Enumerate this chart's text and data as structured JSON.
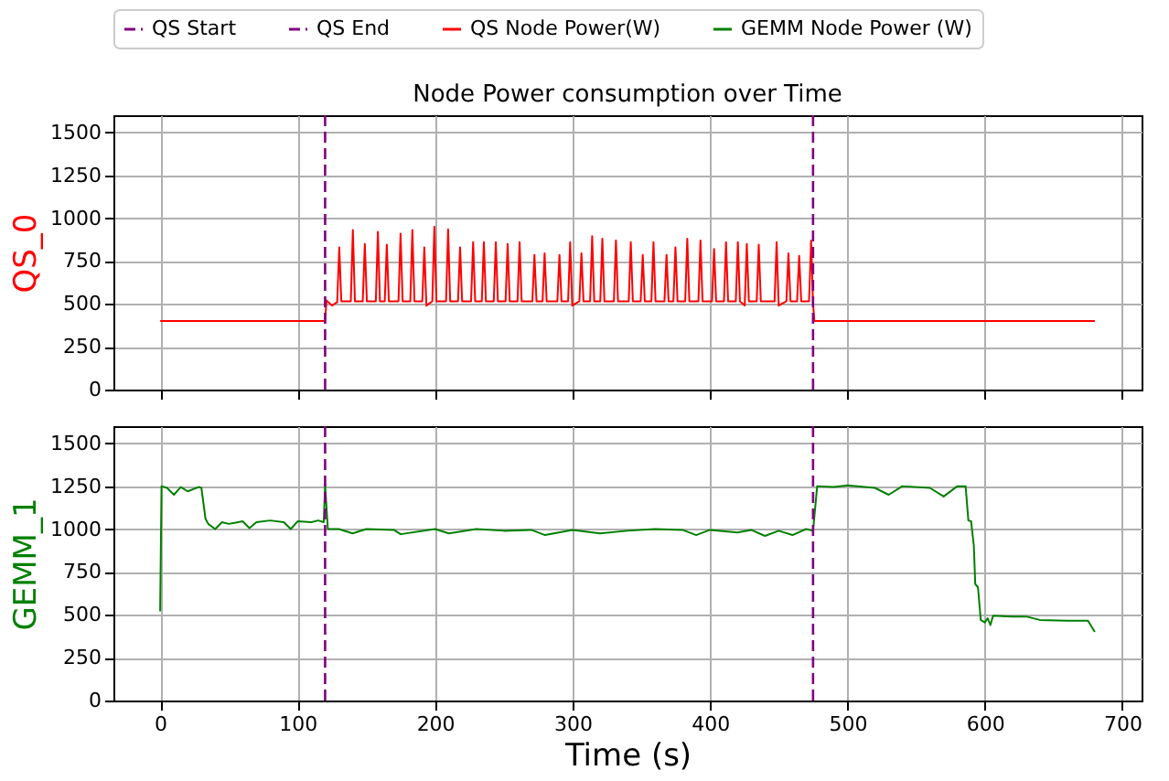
{
  "chart_data": [
    {
      "type": "line",
      "title": "Node Power consumption over Time",
      "ylabel": "QS_0",
      "legend": "top",
      "grid": true,
      "tick_labels": "y",
      "xlim": [
        -34,
        714
      ],
      "xticks": [
        0,
        100,
        200,
        300,
        400,
        500,
        600,
        700
      ],
      "ylim": [
        0,
        1600
      ],
      "yticks": [
        0,
        250,
        500,
        750,
        1000,
        1250,
        1500
      ],
      "ref_lines": [
        {
          "axis": "x",
          "value": 120,
          "label": "QS Start",
          "color": "#800080",
          "line_style": "dashed"
        },
        {
          "axis": "x",
          "value": 475,
          "label": "QS End",
          "color": "#800080",
          "line_style": "dashed"
        }
      ],
      "series": [
        {
          "name": "QS Node Power(W)",
          "color": "#ff0000",
          "x": [
            0,
            120,
            121,
            125,
            128.8,
            130.3,
            131.8,
            138.7,
            140.2,
            141.7,
            147.4,
            148.9,
            150.4,
            156.9,
            158.4,
            159.9,
            163.4,
            164.9,
            166.4,
            173.4,
            174.9,
            176.4,
            182,
            183.5,
            185,
            190.7,
            192.2,
            193.7,
            198,
            199.5,
            201,
            208,
            209.5,
            211,
            216.7,
            218.2,
            219.7,
            226.2,
            227.7,
            229.2,
            234,
            235.5,
            237,
            242.7,
            244.2,
            245.7,
            251.3,
            252.8,
            254.3,
            260,
            261.5,
            263,
            270.8,
            272.3,
            273.8,
            278.2,
            279.7,
            281.2,
            289,
            290.5,
            292,
            296.8,
            298.3,
            299.8,
            305,
            306.5,
            308,
            312.8,
            314.3,
            315.8,
            320.2,
            321.7,
            323.2,
            330.1,
            331.6,
            333.1,
            340.9,
            342.4,
            343.9,
            349.6,
            351.1,
            352.6,
            357.4,
            358.9,
            360.4,
            366.9,
            368.4,
            369.9,
            373.4,
            374.9,
            376.4,
            382,
            383.5,
            385,
            391.6,
            393.1,
            394.6,
            401.5,
            403,
            404.5,
            410.2,
            411.7,
            413.2,
            418.8,
            420.3,
            421.8,
            425.3,
            426.8,
            428.3,
            434,
            435.5,
            437,
            447,
            448.5,
            450,
            455.6,
            457.1,
            458.6,
            463.4,
            464.9,
            466.4,
            472.1,
            473.6,
            475,
            476,
            680
          ],
          "values": [
            400,
            400,
            520,
            490,
            510,
            830,
            515,
            515,
            930,
            515,
            515,
            850,
            515,
            515,
            920,
            515,
            515,
            845,
            515,
            515,
            910,
            515,
            515,
            930,
            515,
            515,
            830,
            490,
            515,
            950,
            515,
            515,
            935,
            515,
            515,
            830,
            515,
            515,
            860,
            515,
            515,
            860,
            515,
            515,
            860,
            515,
            515,
            850,
            515,
            515,
            860,
            515,
            515,
            785,
            515,
            515,
            795,
            515,
            515,
            785,
            515,
            515,
            860,
            490,
            515,
            795,
            515,
            515,
            895,
            515,
            515,
            880,
            515,
            515,
            870,
            515,
            515,
            860,
            515,
            515,
            785,
            515,
            515,
            860,
            515,
            515,
            785,
            515,
            515,
            830,
            515,
            515,
            880,
            515,
            515,
            870,
            515,
            515,
            820,
            515,
            515,
            860,
            515,
            515,
            860,
            515,
            490,
            850,
            515,
            515,
            845,
            515,
            515,
            860,
            490,
            515,
            795,
            515,
            515,
            780,
            515,
            515,
            870,
            500,
            400,
            400
          ]
        }
      ]
    },
    {
      "type": "line",
      "ylabel": "GEMM_1",
      "xlabel": "Time (s)",
      "grid": true,
      "xlim": [
        -34,
        714
      ],
      "xticks": [
        0,
        100,
        200,
        300,
        400,
        500,
        600,
        700
      ],
      "ylim": [
        0,
        1600
      ],
      "yticks": [
        0,
        250,
        500,
        750,
        1000,
        1250,
        1500
      ],
      "ref_lines": [
        {
          "axis": "x",
          "value": 120,
          "color": "#800080",
          "line_style": "dashed"
        },
        {
          "axis": "x",
          "value": 475,
          "color": "#800080",
          "line_style": "dashed"
        }
      ],
      "series": [
        {
          "name": "GEMM Node Power (W)",
          "color": "#008000",
          "x": [
            0,
            1,
            5,
            10,
            15,
            20,
            28,
            30,
            33,
            35,
            40,
            45,
            50,
            60,
            65,
            70,
            80,
            90,
            95,
            100,
            110,
            115,
            119,
            120,
            122,
            130,
            140,
            150,
            170,
            175,
            200,
            210,
            230,
            250,
            270,
            280,
            300,
            320,
            340,
            360,
            380,
            390,
            400,
            420,
            430,
            440,
            450,
            460,
            470,
            475,
            478,
            490,
            500,
            520,
            530,
            540,
            560,
            570,
            580,
            586,
            588,
            590,
            592,
            593,
            595,
            597,
            600,
            602,
            604,
            606,
            620,
            630,
            640,
            660,
            675,
            680
          ],
          "values": [
            520,
            1250,
            1240,
            1200,
            1245,
            1220,
            1245,
            1240,
            1060,
            1030,
            1000,
            1040,
            1030,
            1045,
            1005,
            1040,
            1050,
            1040,
            1000,
            1045,
            1040,
            1050,
            1040,
            1260,
            1000,
            1000,
            975,
            1000,
            995,
            970,
            1000,
            975,
            1000,
            990,
            995,
            965,
            995,
            975,
            990,
            1000,
            995,
            965,
            995,
            980,
            995,
            960,
            990,
            965,
            1000,
            990,
            1250,
            1245,
            1255,
            1240,
            1200,
            1250,
            1240,
            1190,
            1250,
            1250,
            1050,
            1045,
            900,
            680,
            660,
            470,
            455,
            480,
            440,
            495,
            490,
            490,
            470,
            465,
            465,
            400
          ]
        }
      ]
    }
  ]
}
